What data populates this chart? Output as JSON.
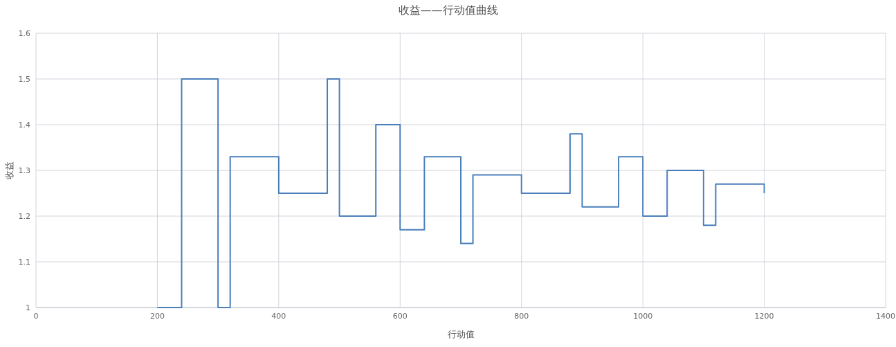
{
  "chart_data": {
    "type": "step",
    "title": "收益——行动值曲线",
    "xlabel": "行动值",
    "ylabel": "收益",
    "x": [
      200,
      240,
      300,
      320,
      400,
      480,
      500,
      560,
      600,
      640,
      700,
      720,
      800,
      880,
      900,
      960,
      1000,
      1040,
      1100,
      1120,
      1200
    ],
    "series": [
      {
        "color": "#4a7ebb",
        "values": [
          1,
          1.5,
          1,
          1.33,
          1.25,
          1.5,
          1.2,
          1.4,
          1.17,
          1.33,
          1.14,
          1.29,
          1.25,
          1.38,
          1.22,
          1.33,
          1.2,
          1.3,
          1.18,
          1.27,
          1.25
        ]
      }
    ],
    "xlim": [
      0,
      1400
    ],
    "xticks": [
      0,
      200,
      400,
      600,
      800,
      1000,
      1200,
      1400
    ],
    "ylim": [
      1,
      1.6
    ],
    "yticks": [
      1,
      1.1,
      1.2,
      1.3,
      1.4,
      1.5,
      1.6
    ],
    "grid": true
  }
}
